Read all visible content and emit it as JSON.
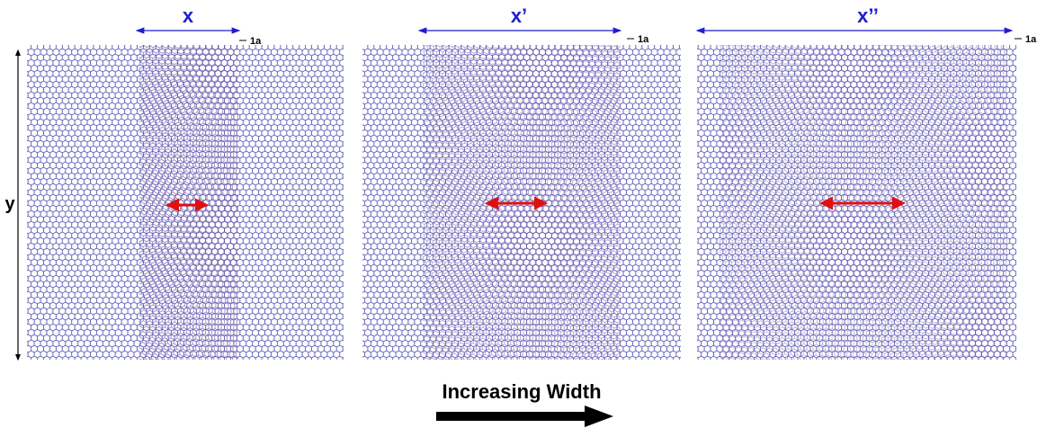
{
  "panels": [
    {
      "label": "x",
      "step": "1a"
    },
    {
      "label": "x’",
      "step": "1a"
    },
    {
      "label": "x’’",
      "step": "1a"
    }
  ],
  "y_label": "y",
  "caption": "Increasing Width"
}
